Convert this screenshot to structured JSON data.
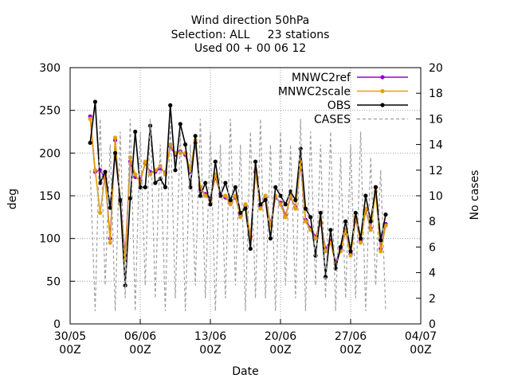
{
  "chart_data": {
    "type": "line",
    "title": [
      "Wind direction 50hPa",
      "Selection: ALL     23 stations",
      "Used 00 + 00 06 12"
    ],
    "xlabel": "Date",
    "ylabel": "deg",
    "y2label": "No cases",
    "x": [
      2,
      2.5,
      3,
      3.5,
      4,
      4.5,
      5,
      5.5,
      6,
      6.5,
      7,
      7.5,
      8,
      8.5,
      9,
      9.5,
      10,
      10.5,
      11,
      11.5,
      12,
      12.5,
      13,
      13.5,
      14,
      14.5,
      15,
      15.5,
      16,
      16.5,
      17,
      17.5,
      18,
      18.5,
      19,
      19.5,
      20,
      20.5,
      21,
      21.5,
      22,
      22.5,
      23,
      23.5,
      24,
      24.5,
      25,
      25.5,
      26,
      26.5,
      27,
      27.5,
      28,
      28.5,
      29,
      29.5,
      30,
      30.5,
      31,
      31.5
    ],
    "series": [
      {
        "name": "MNWC2ref",
        "color": "#9400d3",
        "style": "points-line",
        "values": [
          243,
          178,
          180,
          170,
          100,
          215,
          142,
          80,
          190,
          172,
          168,
          188,
          178,
          178,
          182,
          177,
          208,
          198,
          202,
          198,
          178,
          212,
          158,
          152,
          147,
          172,
          152,
          148,
          142,
          148,
          127,
          138,
          102,
          178,
          137,
          148,
          117,
          148,
          142,
          127,
          148,
          137,
          188,
          122,
          112,
          102,
          118,
          88,
          97,
          72,
          87,
          108,
          82,
          123,
          97,
          133,
          112,
          160,
          88,
          117
        ]
      },
      {
        "name": "MNWC2scale",
        "color": "#e69f00",
        "style": "points-line",
        "values": [
          240,
          180,
          130,
          175,
          95,
          218,
          140,
          75,
          195,
          175,
          165,
          190,
          175,
          180,
          185,
          175,
          210,
          200,
          200,
          200,
          180,
          215,
          160,
          150,
          145,
          175,
          150,
          150,
          140,
          150,
          125,
          140,
          100,
          180,
          135,
          150,
          115,
          150,
          140,
          125,
          150,
          135,
          190,
          120,
          110,
          100,
          120,
          85,
          95,
          70,
          85,
          110,
          80,
          125,
          95,
          135,
          110,
          155,
          85,
          115
        ]
      },
      {
        "name": "OBS",
        "color": "#000000",
        "style": "points-line",
        "values": [
          212,
          260,
          165,
          178,
          136,
          200,
          145,
          45,
          147,
          225,
          160,
          160,
          232,
          165,
          170,
          160,
          256,
          180,
          234,
          210,
          160,
          220,
          150,
          165,
          140,
          190,
          150,
          165,
          145,
          160,
          130,
          135,
          88,
          190,
          140,
          145,
          100,
          160,
          150,
          140,
          155,
          145,
          205,
          135,
          125,
          80,
          130,
          55,
          110,
          65,
          90,
          120,
          85,
          130,
          100,
          150,
          120,
          160,
          98,
          128
        ]
      },
      {
        "name": "CASES",
        "color": "#a0a0a0",
        "style": "dashed",
        "axis": "y2",
        "values": [
          12,
          1,
          16,
          3,
          14,
          1,
          15,
          2,
          16,
          1,
          15,
          3,
          16,
          2,
          14,
          1,
          16,
          2,
          15,
          1,
          14,
          3,
          16,
          2,
          15,
          1,
          14,
          2,
          16,
          3,
          14,
          1,
          15,
          2,
          16,
          2,
          14,
          1,
          15,
          3,
          14,
          2,
          16,
          1,
          15,
          3,
          14,
          2,
          15,
          1,
          13,
          2,
          14,
          2,
          15,
          1,
          13,
          3,
          12,
          1
        ]
      }
    ],
    "xlim": [
      0,
      35
    ],
    "xticks": [
      {
        "value": 0,
        "label": "30/05\n00Z"
      },
      {
        "value": 7,
        "label": "06/06\n00Z"
      },
      {
        "value": 14,
        "label": "13/06\n00Z"
      },
      {
        "value": 21,
        "label": "20/06\n00Z"
      },
      {
        "value": 28,
        "label": "27/06\n00Z"
      },
      {
        "value": 35,
        "label": "04/07\n00Z"
      }
    ],
    "ylim": [
      0,
      300
    ],
    "yticks": [
      0,
      50,
      100,
      150,
      200,
      250,
      300
    ],
    "y2lim": [
      0,
      20
    ],
    "y2ticks": [
      0,
      2,
      4,
      6,
      8,
      10,
      12,
      14,
      16,
      18,
      20
    ],
    "grid": true,
    "legend": "top-right"
  }
}
